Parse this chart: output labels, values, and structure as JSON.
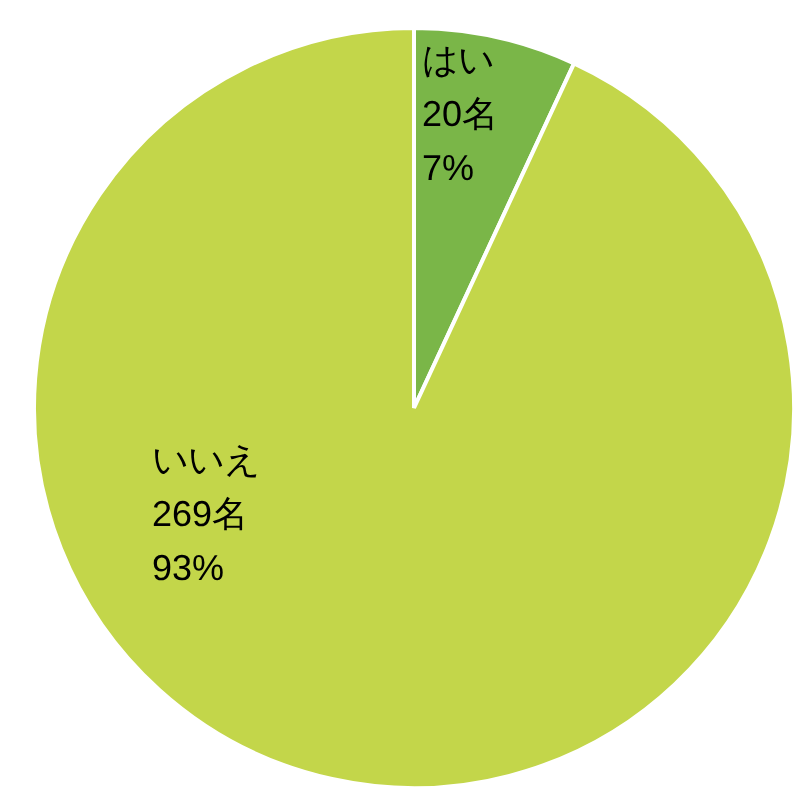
{
  "chart_data": {
    "type": "pie",
    "categories": [
      "はい",
      "いいえ"
    ],
    "values": [
      20,
      269
    ],
    "value_labels": [
      "20名\n7%",
      "269名\n93%"
    ],
    "colors": [
      "#7ab648",
      "#c3d64a"
    ]
  }
}
